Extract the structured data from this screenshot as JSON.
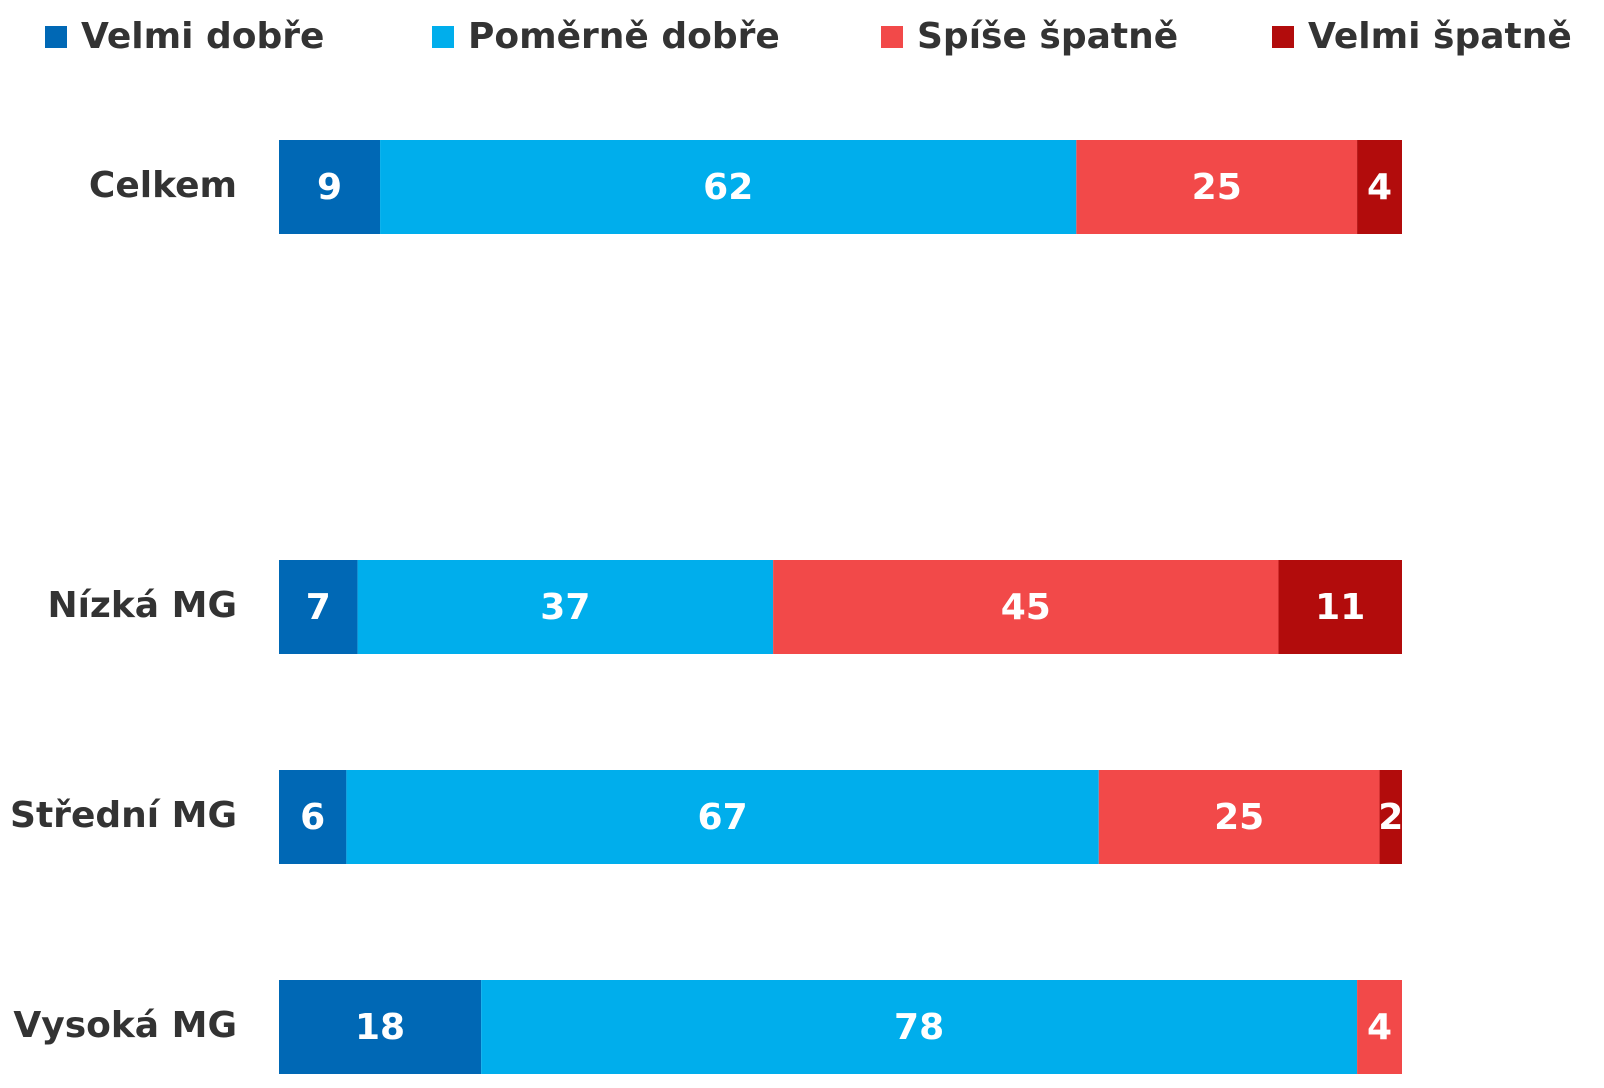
{
  "chart_data": {
    "type": "stacked_bar_horizontal",
    "categories": [
      "Celkem",
      null,
      "Nízká MG",
      "Střední MG",
      "Vysoká MG"
    ],
    "series": [
      {
        "name": "Velmi dobře",
        "color": "#0068b5",
        "values": [
          9,
          null,
          7,
          6,
          18
        ]
      },
      {
        "name": "Poměrně dobře",
        "color": "#00aeec",
        "values": [
          62,
          null,
          37,
          67,
          78
        ]
      },
      {
        "name": "Spíše špatně",
        "color": "#f24949",
        "values": [
          25,
          null,
          45,
          25,
          4
        ]
      },
      {
        "name": "Velmi špatně",
        "color": "#b20c0c",
        "values": [
          4,
          null,
          11,
          2,
          null
        ]
      }
    ],
    "xlim": [
      0,
      100
    ],
    "legend": "top"
  }
}
